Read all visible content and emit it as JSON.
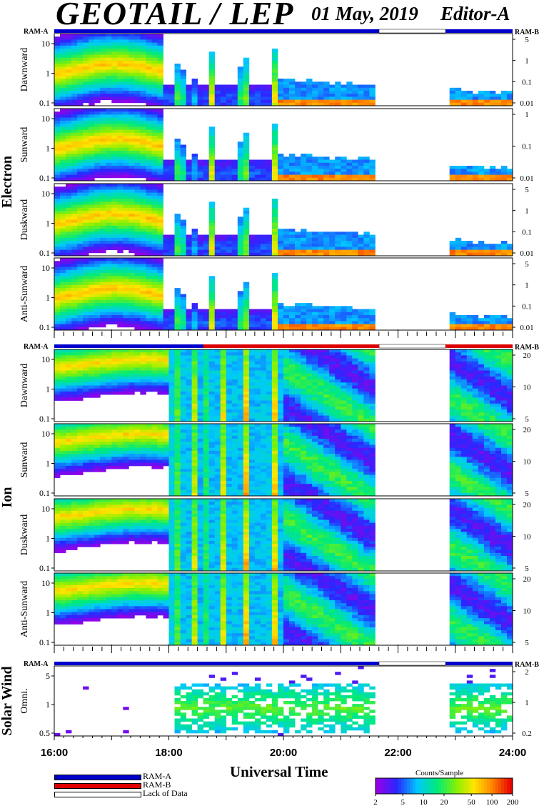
{
  "header": {
    "title": "GEOTAIL / LEP",
    "date": "01 May, 2019",
    "editor": "Editor-A"
  },
  "chart_data": {
    "type": "heatmap",
    "xlabel": "Universal Time",
    "x_ticks": [
      "16:00",
      "18:00",
      "20:00",
      "22:00",
      "24:00"
    ],
    "x_range_hours": [
      16,
      24
    ],
    "data_gap_hours": [
      21.67,
      22.83
    ],
    "groups": [
      {
        "label": "Electron",
        "panels": [
          {
            "label": "Dawnward",
            "left_ticks": [
              "10",
              "1",
              "0.1"
            ],
            "right_ticks": [
              "5",
              "1",
              "0.1",
              "0.01"
            ]
          },
          {
            "label": "Sunward",
            "left_ticks": [
              "10",
              "1",
              "0.1"
            ],
            "right_ticks": [
              "1",
              "0.1",
              "0.01"
            ]
          },
          {
            "label": "Duskward",
            "left_ticks": [
              "10",
              "1",
              "0.1"
            ],
            "right_ticks": [
              "5",
              "1",
              "0.1",
              "0.01"
            ]
          },
          {
            "label": "Anti-Sunward",
            "left_ticks": [
              "10",
              "1",
              "0.1"
            ],
            "right_ticks": [
              "5",
              "1",
              "0.1",
              "0.01"
            ]
          }
        ],
        "ram_left": "RAM-A",
        "ram_right": "RAM-B"
      },
      {
        "label": "Ion",
        "panels": [
          {
            "label": "Dawnward",
            "left_ticks": [
              "10",
              "1",
              "0.1"
            ],
            "right_ticks": [
              "20",
              "10",
              "5"
            ]
          },
          {
            "label": "Sunward",
            "left_ticks": [
              "10",
              "1",
              "0.1"
            ],
            "right_ticks": [
              "20",
              "10",
              "5"
            ]
          },
          {
            "label": "Duskward",
            "left_ticks": [
              "10",
              "1",
              "0.1"
            ],
            "right_ticks": [
              "20",
              "10",
              "5"
            ]
          },
          {
            "label": "Anti-Sunward",
            "left_ticks": [
              "10",
              "1",
              "0.1"
            ],
            "right_ticks": [
              "20",
              "10",
              "5"
            ]
          }
        ],
        "ram_left": "RAM-A",
        "ram_right": "RAM-B"
      },
      {
        "label": "Solar Wind",
        "panels": [
          {
            "label": "Omni.",
            "left_ticks": [
              "5",
              "1",
              "0.5"
            ],
            "right_ticks": [
              "2",
              "1",
              "0.2"
            ]
          }
        ],
        "ram_left": "RAM-A",
        "ram_right": "RAM-B"
      }
    ],
    "colorbar": {
      "title": "Counts/Sample",
      "ticks": [
        "2",
        "5",
        "10",
        "20",
        "50",
        "100",
        "200"
      ]
    },
    "legend": [
      {
        "label": "RAM-A",
        "color": "#0000cc"
      },
      {
        "label": "RAM-B",
        "color": "#dd0000"
      },
      {
        "label": "Lack of Data",
        "color": "#ffffff"
      }
    ]
  }
}
